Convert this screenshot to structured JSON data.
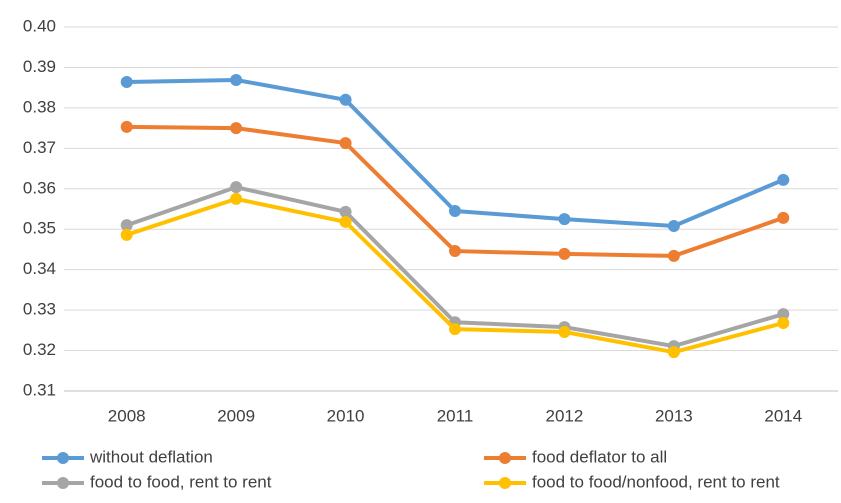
{
  "chart_data": {
    "type": "line",
    "categories": [
      "2008",
      "2009",
      "2010",
      "2011",
      "2012",
      "2013",
      "2014"
    ],
    "series": [
      {
        "name": "without deflation",
        "color": "#5b9bd5",
        "values": [
          0.3864,
          0.3869,
          0.382,
          0.3545,
          0.3525,
          0.3508,
          0.3622
        ]
      },
      {
        "name": "food deflator to all",
        "color": "#ed7d31",
        "values": [
          0.3753,
          0.375,
          0.3713,
          0.3446,
          0.3439,
          0.3434,
          0.3528
        ]
      },
      {
        "name": "food to food, rent to rent",
        "color": "#a5a5a5",
        "values": [
          0.351,
          0.3604,
          0.3543,
          0.327,
          0.3258,
          0.3211,
          0.329
        ]
      },
      {
        "name": "food to food/nonfood, rent to rent",
        "color": "#ffc000",
        "values": [
          0.3486,
          0.3575,
          0.3518,
          0.3253,
          0.3246,
          0.3196,
          0.3268
        ]
      }
    ],
    "ylim": [
      0.31,
      0.4
    ],
    "yticks": [
      0.31,
      0.32,
      0.33,
      0.34,
      0.35,
      0.36,
      0.37,
      0.38,
      0.39,
      {
        "value": 0.4,
        "label": "0.40"
      }
    ],
    "grid": true,
    "legend": "bottom"
  }
}
